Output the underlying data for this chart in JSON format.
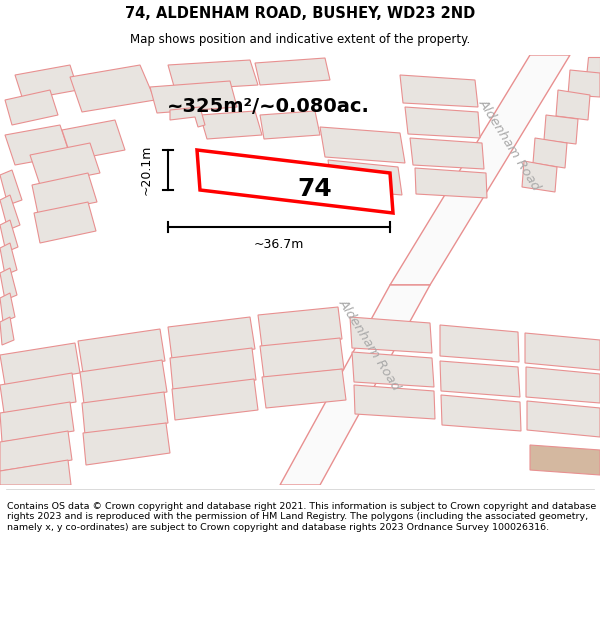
{
  "title": "74, ALDENHAM ROAD, BUSHEY, WD23 2ND",
  "subtitle": "Map shows position and indicative extent of the property.",
  "footer_text": "Contains OS data © Crown copyright and database right 2021. This information is subject to Crown copyright and database rights 2023 and is reproduced with the permission of HM Land Registry. The polygons (including the associated geometry, namely x, y co-ordinates) are subject to Crown copyright and database rights 2023 Ordnance Survey 100026316.",
  "area_label": "~325m²/~0.080ac.",
  "property_number": "74",
  "dim_width": "~36.7m",
  "dim_height": "~20.1m",
  "road_label_1": "Aldenham Road",
  "road_label_2": "Aldenham Road",
  "map_bg": "#fafafa",
  "building_fill": "#e8e4e0",
  "building_stroke": "#e89090",
  "highlight_stroke": "#ff0000",
  "highlight_fill": "#ffffff",
  "title_color": "#000000",
  "footer_color": "#000000",
  "road_color": "#e89090",
  "road_label_color": "#aaaaaa"
}
